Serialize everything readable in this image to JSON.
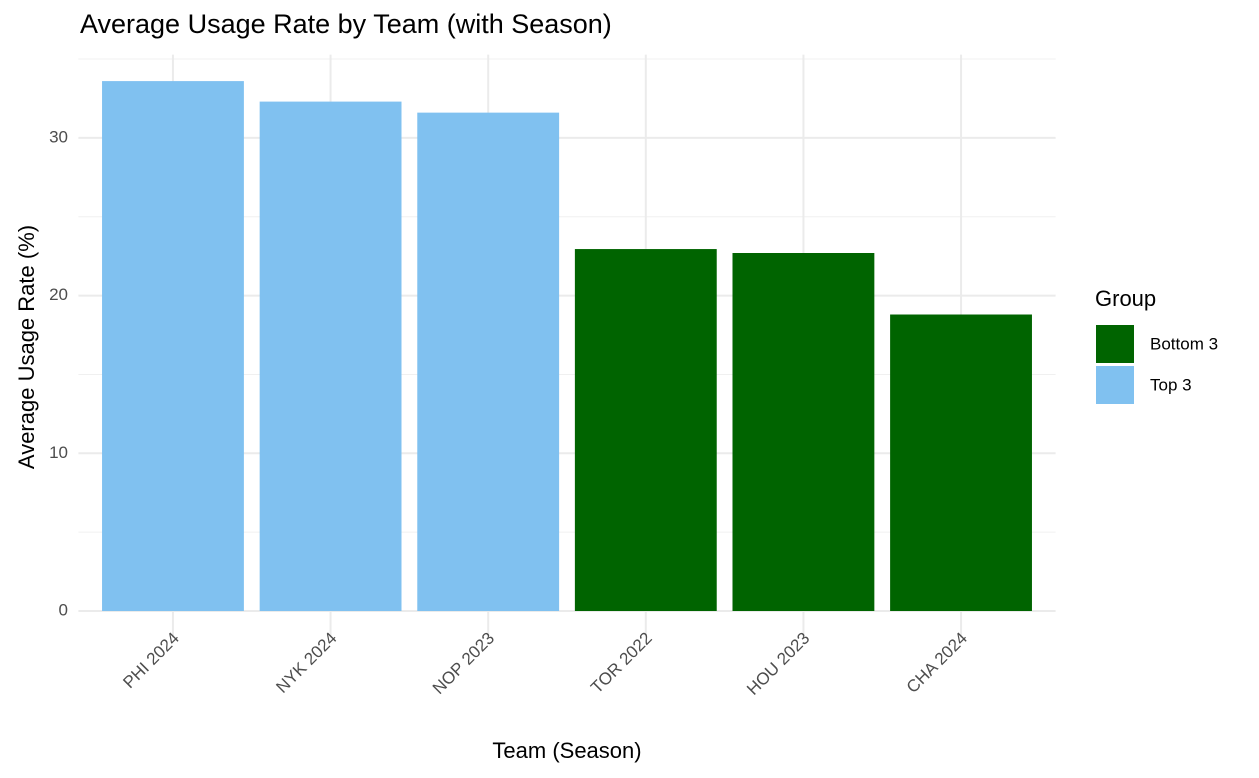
{
  "chart_data": {
    "type": "bar",
    "title": "Average Usage Rate by Team (with Season)",
    "x_label": "Team (Season)",
    "y_label": "Average Usage Rate (%)",
    "categories": [
      "PHI 2024",
      "NYK 2024",
      "NOP 2023",
      "TOR 2022",
      "HOU 2023",
      "CHA 2024"
    ],
    "series": [
      {
        "name": "Bottom 3",
        "color": "#006400",
        "values": [
          null,
          null,
          null,
          22.95,
          22.7,
          18.8
        ]
      },
      {
        "name": "Top 3",
        "color": "#80c1f0",
        "values": [
          33.6,
          32.3,
          31.6,
          null,
          null,
          null
        ]
      }
    ],
    "legend_title": "Group",
    "legend_position": "right",
    "ylim": [
      -1.68,
      35.28
    ],
    "yticks": [
      0,
      10,
      20,
      30
    ],
    "grid": true
  }
}
